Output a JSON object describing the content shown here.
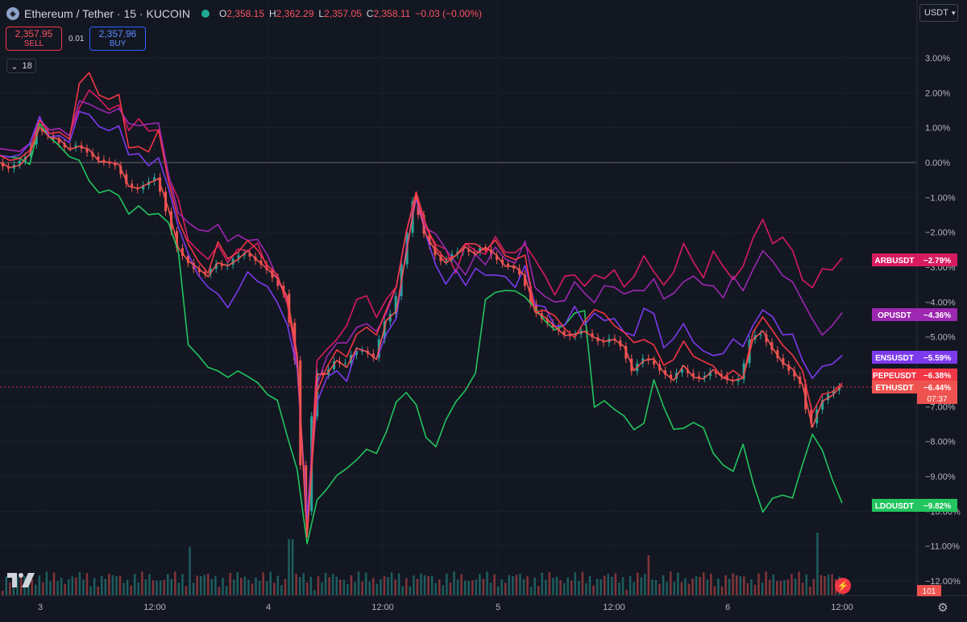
{
  "header": {
    "title": "Ethereum / Tether · 15 · KUCOIN",
    "o_label": "O",
    "o_value": "2,358.15",
    "h_label": "H",
    "h_value": "2,362.29",
    "l_label": "L",
    "l_value": "2,357.05",
    "c_label": "C",
    "c_value": "2,358.11",
    "change": "−0.03 (−0.00%)"
  },
  "trade": {
    "sell_price": "2,357.95",
    "sell_label": "SELL",
    "spread": "0.01",
    "buy_price": "2,357.96",
    "buy_label": "BUY"
  },
  "indicator_toggle": {
    "count": "18"
  },
  "currency": {
    "label": "USDT"
  },
  "colors": {
    "ETHUSDT": "#ef5350",
    "ARBUSDT": "#d81b60",
    "OPUSDT": "#9c27b0",
    "ENSUSDT": "#7c3aed",
    "PEPEUSDT": "#f23645",
    "LDOUSDT": "#22c55e"
  },
  "icons": {
    "logo": "ethereum-logo-icon",
    "market": "market-open-dot-icon",
    "chevron": "chevron-down-icon",
    "brand": "tradingview-logo-icon",
    "flash": "lightning-icon",
    "settings": "gear-icon"
  },
  "chart_data": {
    "type": "line",
    "y_unit": "%",
    "ylim": [
      -12,
      3.3
    ],
    "y_ticks": [
      "3.00%",
      "2.00%",
      "1.00%",
      "0.00%",
      "−1.00%",
      "−2.00%",
      "−3.00%",
      "−4.00%",
      "−5.00%",
      "−6.00%",
      "−7.00%",
      "−8.00%",
      "−9.00%",
      "−10.00%",
      "−11.00%",
      "−12.00%"
    ],
    "x_ticks": [
      "3",
      "12:00",
      "4",
      "12:00",
      "5",
      "12:00",
      "6",
      "12:00"
    ],
    "series": [
      {
        "name": "ARBUSDT",
        "color": "#d81b60",
        "last": "−2.79%",
        "last_value": -2.79,
        "values": [
          0.4,
          0.3,
          0.4,
          0.5,
          1.2,
          1.0,
          0.9,
          0.8,
          1.6,
          2.0,
          1.9,
          1.5,
          1.6,
          1.0,
          1.2,
          0.9,
          1.0,
          -0.5,
          -1.0,
          -2.2,
          -2.6,
          -2.7,
          -2.4,
          -2.9,
          -2.4,
          -2.6,
          -2.3,
          -3.0,
          -3.4,
          -3.9,
          -5.8,
          -10.5,
          -5.6,
          -5.4,
          -5.1,
          -4.6,
          -4.0,
          -3.8,
          -4.4,
          -4.0,
          -3.5,
          -2.0,
          -1.0,
          -1.8,
          -2.4,
          -2.5,
          -3.1,
          -2.4,
          -2.5,
          -2.6,
          -2.2,
          -2.5,
          -2.6,
          -2.4,
          -2.7,
          -3.3,
          -3.8,
          -3.2,
          -3.3,
          -3.5,
          -3.2,
          -3.4,
          -3.0,
          -3.6,
          -3.3,
          -2.6,
          -3.2,
          -3.5,
          -3.1,
          -2.4,
          -2.8,
          -3.3,
          -2.6,
          -2.9,
          -3.4,
          -3.0,
          -2.1,
          -1.7,
          -2.3,
          -2.1,
          -2.6,
          -3.3,
          -3.6,
          -3.1,
          -3.0,
          -2.79
        ]
      },
      {
        "name": "OPUSDT",
        "color": "#9c27b0",
        "last": "−4.36%",
        "last_value": -4.36,
        "values": [
          0.4,
          0.3,
          0.4,
          0.5,
          1.2,
          1.0,
          0.9,
          0.8,
          1.8,
          1.6,
          1.6,
          1.4,
          1.5,
          1.2,
          1.0,
          1.1,
          1.2,
          -0.4,
          -1.4,
          -1.7,
          -2.0,
          -1.9,
          -1.8,
          -2.3,
          -2.0,
          -2.3,
          -2.2,
          -2.6,
          -3.4,
          -3.9,
          -5.8,
          -10.2,
          -6.3,
          -5.6,
          -5.2,
          -5.1,
          -4.8,
          -4.6,
          -4.8,
          -4.4,
          -3.5,
          -2.0,
          -1.0,
          -1.8,
          -2.1,
          -2.5,
          -2.8,
          -3.3,
          -2.6,
          -2.9,
          -2.5,
          -2.7,
          -2.9,
          -2.3,
          -3.5,
          -3.9,
          -4.0,
          -3.9,
          -3.5,
          -3.7,
          -4.0,
          -3.6,
          -3.5,
          -3.8,
          -3.7,
          -3.6,
          -3.4,
          -3.9,
          -3.7,
          -3.5,
          -3.2,
          -3.5,
          -3.6,
          -3.8,
          -3.3,
          -3.7,
          -3.0,
          -2.6,
          -2.8,
          -3.2,
          -3.5,
          -3.9,
          -4.5,
          -5.0,
          -4.6,
          -4.36
        ]
      },
      {
        "name": "ENSUSDT",
        "color": "#7c3aed",
        "last": "−5.59%",
        "last_value": -5.59,
        "values": [
          0.2,
          0.1,
          0.3,
          0.5,
          1.3,
          0.8,
          0.7,
          0.6,
          1.5,
          1.3,
          1.1,
          0.9,
          1.0,
          0.3,
          0.2,
          -0.1,
          0.2,
          -0.8,
          -1.8,
          -2.6,
          -3.3,
          -3.5,
          -3.8,
          -4.2,
          -3.6,
          -3.2,
          -3.4,
          -3.5,
          -4.1,
          -4.6,
          -5.9,
          -10.3,
          -6.8,
          -6.2,
          -6.0,
          -6.2,
          -5.4,
          -5.4,
          -5.6,
          -5.0,
          -4.4,
          -2.5,
          -1.1,
          -2.0,
          -3.0,
          -3.5,
          -3.0,
          -3.6,
          -3.0,
          -3.2,
          -3.3,
          -3.2,
          -3.6,
          -3.0,
          -4.0,
          -4.2,
          -4.7,
          -4.6,
          -4.2,
          -4.6,
          -4.3,
          -4.6,
          -4.4,
          -4.9,
          -5.0,
          -4.1,
          -4.4,
          -5.3,
          -5.0,
          -4.7,
          -5.1,
          -5.4,
          -5.6,
          -5.4,
          -5.1,
          -5.3,
          -4.6,
          -4.3,
          -4.4,
          -4.9,
          -5.0,
          -5.6,
          -6.2,
          -5.9,
          -5.7,
          -5.59
        ]
      },
      {
        "name": "PEPEUSDT",
        "color": "#f23645",
        "last": "−6.38%",
        "last_value": -6.38,
        "values": [
          0.2,
          0.0,
          0.2,
          0.3,
          1.2,
          0.9,
          0.8,
          0.7,
          2.3,
          2.5,
          2.0,
          1.8,
          1.9,
          0.5,
          0.4,
          0.3,
          1.0,
          -0.6,
          -1.6,
          -2.3,
          -2.9,
          -3.1,
          -2.3,
          -2.8,
          -2.5,
          -2.3,
          -2.5,
          -2.9,
          -3.3,
          -4.0,
          -5.6,
          -10.8,
          -6.5,
          -5.9,
          -5.4,
          -5.5,
          -5.0,
          -4.7,
          -4.9,
          -4.3,
          -3.5,
          -2.0,
          -0.9,
          -1.7,
          -2.5,
          -2.8,
          -2.6,
          -2.4,
          -2.3,
          -2.5,
          -2.3,
          -2.6,
          -2.8,
          -2.7,
          -4.2,
          -4.3,
          -4.4,
          -4.7,
          -5.1,
          -4.5,
          -4.2,
          -4.4,
          -4.6,
          -4.9,
          -5.2,
          -5.0,
          -5.3,
          -5.8,
          -5.6,
          -5.2,
          -5.5,
          -5.7,
          -5.9,
          -6.1,
          -6.0,
          -6.2,
          -4.8,
          -4.5,
          -4.8,
          -5.2,
          -5.6,
          -5.9,
          -7.2,
          -6.7,
          -6.5,
          -6.38
        ]
      },
      {
        "name": "ETHUSDT",
        "color": "#ef5350",
        "last": "−6.44%",
        "last_value": -6.44,
        "values": [
          0.0,
          -0.2,
          0.0,
          0.2,
          1.0,
          0.8,
          0.6,
          0.4,
          0.5,
          0.3,
          0.1,
          0.0,
          -0.1,
          -0.6,
          -0.8,
          -0.6,
          -0.4,
          -1.4,
          -2.4,
          -2.8,
          -3.1,
          -3.2,
          -2.9,
          -3.0,
          -2.7,
          -2.6,
          -2.8,
          -3.0,
          -3.4,
          -3.8,
          -5.5,
          -10.8,
          -6.0,
          -6.1,
          -5.7,
          -5.8,
          -5.4,
          -5.4,
          -5.6,
          -4.6,
          -4.2,
          -2.6,
          -1.0,
          -2.0,
          -2.6,
          -2.9,
          -2.6,
          -2.5,
          -2.6,
          -2.4,
          -2.7,
          -2.9,
          -3.0,
          -3.3,
          -4.2,
          -4.5,
          -4.7,
          -4.9,
          -5.0,
          -4.8,
          -5.0,
          -5.2,
          -5.0,
          -5.3,
          -6.0,
          -5.6,
          -5.7,
          -6.0,
          -6.2,
          -5.9,
          -6.1,
          -6.2,
          -6.0,
          -6.1,
          -6.3,
          -6.2,
          -5.0,
          -4.9,
          -5.3,
          -5.7,
          -6.0,
          -6.3,
          -7.6,
          -6.9,
          -6.6,
          -6.44
        ]
      },
      {
        "name": "LDOUSDT",
        "color": "#22c55e",
        "last": "−9.82%",
        "last_value": -9.82,
        "values": [
          0.2,
          0.1,
          0.2,
          -0.1,
          1.1,
          0.8,
          0.4,
          0.2,
          0.1,
          -0.6,
          -0.8,
          -0.8,
          -1.0,
          -1.4,
          -1.3,
          -1.5,
          -1.4,
          -1.8,
          -2.5,
          -5.2,
          -5.6,
          -5.8,
          -6.0,
          -6.2,
          -5.9,
          -6.2,
          -6.3,
          -6.6,
          -6.9,
          -7.8,
          -8.8,
          -11.0,
          -9.6,
          -9.4,
          -9.0,
          -8.7,
          -8.6,
          -8.2,
          -8.3,
          -7.8,
          -6.8,
          -6.6,
          -7.0,
          -7.8,
          -8.2,
          -7.4,
          -6.8,
          -6.6,
          -6.0,
          -3.9,
          -3.8,
          -3.6,
          -3.7,
          -3.9,
          -4.1,
          -4.6,
          -4.8,
          -4.6,
          -4.4,
          -4.2,
          -7.0,
          -6.9,
          -7.0,
          -7.3,
          -7.7,
          -7.4,
          -6.3,
          -7.0,
          -7.6,
          -7.7,
          -7.4,
          -7.6,
          -8.4,
          -8.6,
          -8.9,
          -8.1,
          -9.1,
          -10.1,
          -9.6,
          -9.5,
          -9.7,
          -8.6,
          -7.8,
          -8.3,
          -9.0,
          -9.82
        ]
      }
    ],
    "last_price_countdown": "07:37",
    "volume_label": "101"
  }
}
